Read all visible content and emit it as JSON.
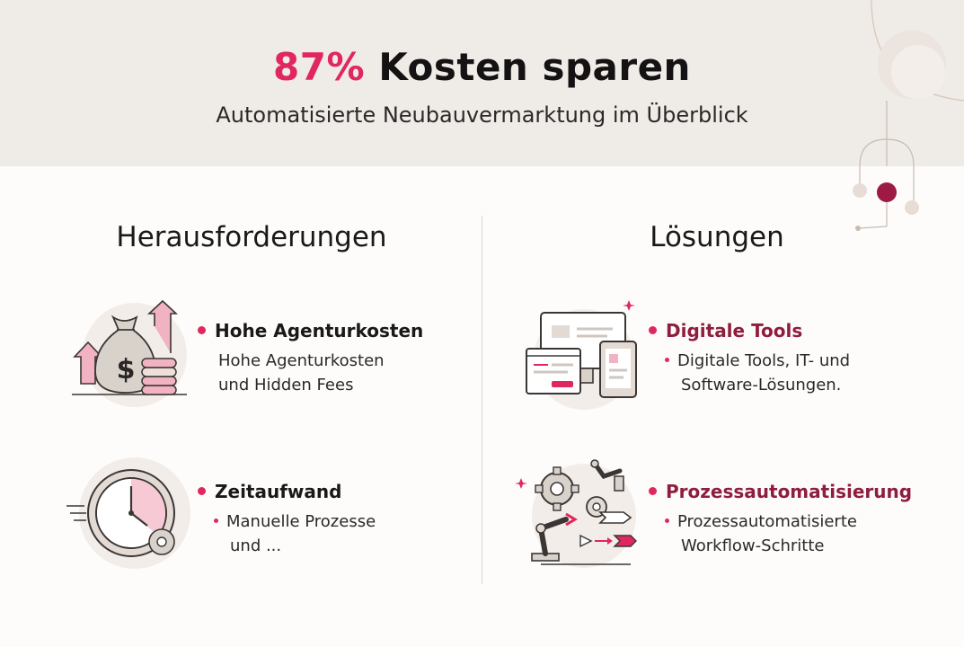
{
  "header": {
    "title_highlight": "87%",
    "title_rest": "Kosten sparen",
    "subtitle": "Automatisierte Neubauvermarktung im Überblick"
  },
  "colors": {
    "accent": "#e0275e",
    "accent_dark": "#8e1d3e",
    "header_bg": "#efebe6",
    "page_bg": "#fdfcfb"
  },
  "left": {
    "heading": "Herausforderungen",
    "items": [
      {
        "icon": "money-bag-icon",
        "title": "Hohe Agenturkosten",
        "desc_line1": "Hohe Agenturkosten",
        "desc_line2": "und Hidden Fees"
      },
      {
        "icon": "clock-gear-icon",
        "title": "Zeitaufwand",
        "desc_line1": "Manuelle Prozesse",
        "desc_line2": "und ..."
      }
    ]
  },
  "right": {
    "heading": "Lösungen",
    "items": [
      {
        "icon": "devices-icon",
        "title": "Digitale Tools",
        "desc_line1": "Digitale Tools, IT- und",
        "desc_line2": "Software-Lösungen."
      },
      {
        "icon": "robot-arm-gears-icon",
        "title": "Prozessautomatisierung",
        "desc_line1": "Prozessautomatisierte",
        "desc_line2": "Workflow-Schritte"
      }
    ]
  }
}
